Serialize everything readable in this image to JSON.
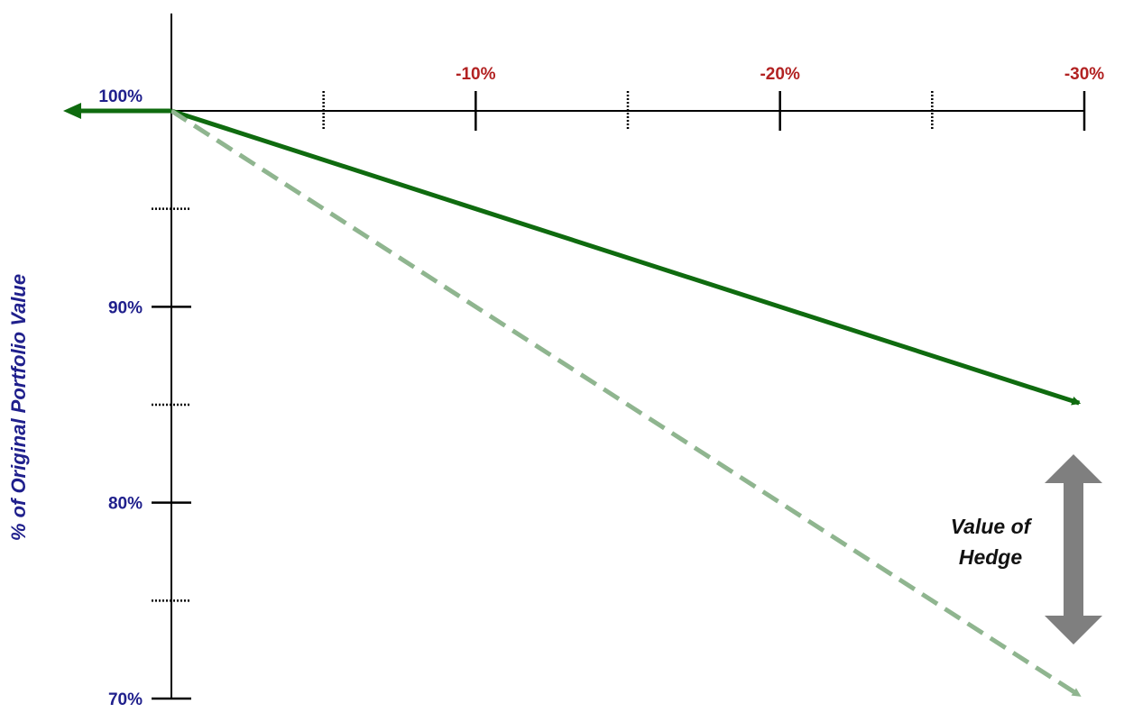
{
  "chart_data": {
    "type": "line",
    "ylabel": "% of Original Portfolio Value",
    "xlabel": "",
    "x_ticks": [
      {
        "value": -10,
        "label": "-10%"
      },
      {
        "value": -20,
        "label": "-20%"
      },
      {
        "value": -30,
        "label": "-30%"
      }
    ],
    "x_minor_ticks": [
      -5,
      -15,
      -25
    ],
    "y_ticks": [
      {
        "value": 100,
        "label": "100%"
      },
      {
        "value": 90,
        "label": "90%"
      },
      {
        "value": 80,
        "label": "80%"
      },
      {
        "value": 70,
        "label": "70%"
      }
    ],
    "y_minor_ticks": [
      95,
      85,
      75
    ],
    "xlim": [
      0,
      -30
    ],
    "ylim": [
      70,
      100
    ],
    "series": [
      {
        "style": "solid",
        "color": "#0f6b0f",
        "points": [
          {
            "x": 0,
            "y": 100
          },
          {
            "x": -30,
            "y": 85
          }
        ]
      },
      {
        "style": "dashed",
        "color": "#8fb58f",
        "points": [
          {
            "x": 0,
            "y": 100
          },
          {
            "x": -30,
            "y": 70
          }
        ]
      }
    ],
    "annotation": {
      "lines": [
        "Value of",
        "Hedge"
      ],
      "arrow_from_y": 85,
      "arrow_to_y": 70,
      "arrow_color": "#7f7f7f"
    },
    "grid": false
  }
}
